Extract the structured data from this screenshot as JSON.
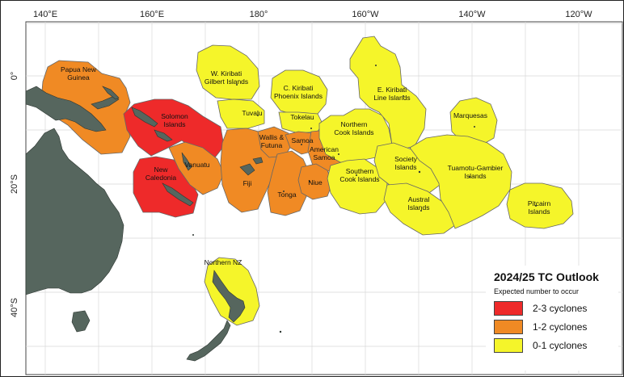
{
  "axes": {
    "lon_labels": [
      "140°E",
      "160°E",
      "180°",
      "160°W",
      "140°W",
      "120°W"
    ],
    "lat_labels": [
      "0°",
      "20°S",
      "40°S"
    ]
  },
  "colors": {
    "high": "#ee2a2a",
    "mid": "#f08a24",
    "low": "#f5f52a",
    "land": "#56665e",
    "sea": "#ffffff"
  },
  "legend": {
    "title": "2024/25 TC Outlook",
    "subtitle": "Expected number to occur",
    "items": [
      {
        "label": "2-3 cyclones",
        "color": "#ee2a2a"
      },
      {
        "label": "1-2 cyclones",
        "color": "#f08a24"
      },
      {
        "label": "0-1 cyclones",
        "color": "#f5f52a"
      }
    ]
  },
  "regions": [
    {
      "name": "Papua New Guinea",
      "lines": [
        "Papua New",
        "Guinea"
      ],
      "level": "1-2 cyclones"
    },
    {
      "name": "Solomon Islands",
      "lines": [
        "Solomon",
        "Islands"
      ],
      "level": "2-3 cyclones"
    },
    {
      "name": "New Caledonia",
      "lines": [
        "New",
        "Caledonia"
      ],
      "level": "2-3 cyclones"
    },
    {
      "name": "Vanuatu",
      "lines": [
        "Vanuatu"
      ],
      "level": "1-2 cyclones"
    },
    {
      "name": "W. Kiribati Gilbert Islands",
      "lines": [
        "W. Kiribati",
        "Gilbert Islands"
      ],
      "level": "0-1 cyclones"
    },
    {
      "name": "Tuvalu",
      "lines": [
        "Tuvalu"
      ],
      "level": "0-1 cyclones"
    },
    {
      "name": "Wallis & Futuna",
      "lines": [
        "Wallis &",
        "Futuna"
      ],
      "level": "1-2 cyclones"
    },
    {
      "name": "Fiji",
      "lines": [
        "Fiji"
      ],
      "level": "1-2 cyclones"
    },
    {
      "name": "Tonga",
      "lines": [
        "Tonga"
      ],
      "level": "1-2 cyclones"
    },
    {
      "name": "Samoa",
      "lines": [
        "Samoa"
      ],
      "level": "1-2 cyclones"
    },
    {
      "name": "American Samoa",
      "lines": [
        "American",
        "Samoa"
      ],
      "level": "1-2 cyclones"
    },
    {
      "name": "Niue",
      "lines": [
        "Niue"
      ],
      "level": "1-2 cyclones"
    },
    {
      "name": "C. Kiribati Phoenix Islands",
      "lines": [
        "C. Kiribati",
        "Phoenix Islands"
      ],
      "level": "0-1 cyclones"
    },
    {
      "name": "Tokelau",
      "lines": [
        "Tokelau"
      ],
      "level": "0-1 cyclones"
    },
    {
      "name": "Northern Cook Islands",
      "lines": [
        "Northern",
        "Cook Islands"
      ],
      "level": "0-1 cyclones"
    },
    {
      "name": "Southern Cook Islands",
      "lines": [
        "Southern",
        "Cook Islands"
      ],
      "level": "0-1 cyclones"
    },
    {
      "name": "E. Kiribati Line Islands",
      "lines": [
        "E. Kiribati",
        "Line Islands"
      ],
      "level": "0-1 cyclones"
    },
    {
      "name": "Society Islands",
      "lines": [
        "Society",
        "Islands"
      ],
      "level": "0-1 cyclones"
    },
    {
      "name": "Austral Islands",
      "lines": [
        "Austral",
        "Islands"
      ],
      "level": "0-1 cyclones"
    },
    {
      "name": "Marquesas",
      "lines": [
        "Marquesas"
      ],
      "level": "0-1 cyclones"
    },
    {
      "name": "Tuamotu-Gambier Islands",
      "lines": [
        "Tuamotu-Gambier",
        "Islands"
      ],
      "level": "0-1 cyclones"
    },
    {
      "name": "Pitcairn Islands",
      "lines": [
        "Pitcairn",
        "Islands"
      ],
      "level": "0-1 cyclones"
    },
    {
      "name": "Northern NZ",
      "lines": [
        "Northern NZ"
      ],
      "level": "0-1 cyclones"
    }
  ]
}
